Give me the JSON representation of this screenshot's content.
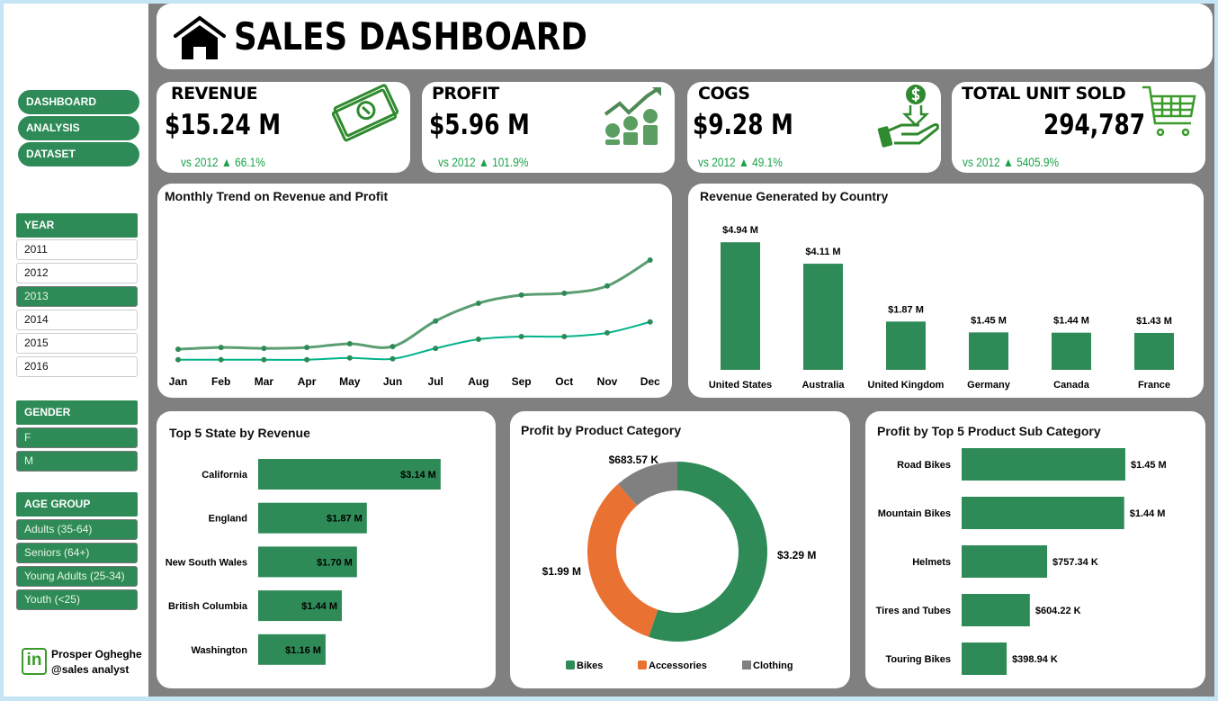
{
  "header": {
    "title": "SALES DASHBOARD"
  },
  "nav": [
    {
      "label": "DASHBOARD"
    },
    {
      "label": "ANALYSIS"
    },
    {
      "label": "DATASET"
    }
  ],
  "filters": {
    "year": {
      "label": "YEAR",
      "items": [
        "2011",
        "2012",
        "2013",
        "2014",
        "2015",
        "2016"
      ],
      "selected": "2013"
    },
    "gender": {
      "label": "GENDER",
      "items": [
        "F",
        "M"
      ]
    },
    "age_group": {
      "label": "AGE GROUP",
      "items": [
        "Adults (35-64)",
        "Seniors (64+)",
        "Young Adults (25-34)",
        "Youth (<25)"
      ]
    }
  },
  "author": {
    "name": "Prosper Ogheghe",
    "handle": "@sales analyst",
    "icon": "linkedin-icon"
  },
  "kpis": [
    {
      "title": "REVENUE",
      "value": "$15.24 M",
      "compare": "vs 2012 ▲ 66.1%",
      "icon": "money-icon"
    },
    {
      "title": "PROFIT",
      "value": "$5.96 M",
      "compare": "vs 2012 ▲ 101.9%",
      "icon": "profit-growth-icon"
    },
    {
      "title": "COGS",
      "value": "$9.28 M",
      "compare": "vs 2012 ▲ 49.1%",
      "icon": "hand-dollar-icon"
    },
    {
      "title": "TOTAL UNIT SOLD",
      "value": "294,787",
      "compare": "vs 2012 ▲ 5405.9%",
      "icon": "cart-icon"
    }
  ],
  "colors": {
    "green": "#2e8b57",
    "teal": "#00b38a",
    "orange": "#e97132",
    "gray": "#808080",
    "up": "#1aa34a"
  },
  "chart_data": [
    {
      "type": "line",
      "title": "Monthly Trend on Revenue and Profit",
      "categories": [
        "Jan",
        "Feb",
        "Mar",
        "Apr",
        "May",
        "Jun",
        "Jul",
        "Aug",
        "Sep",
        "Oct",
        "Nov",
        "Dec"
      ],
      "series": [
        {
          "values": [
            0.63,
            0.67,
            0.65,
            0.67,
            0.75,
            0.69,
            1.25,
            1.64,
            1.82,
            1.86,
            2.02,
            2.59
          ],
          "color": "#5a9e72"
        },
        {
          "values": [
            0.4,
            0.4,
            0.4,
            0.4,
            0.44,
            0.42,
            0.65,
            0.85,
            0.91,
            0.91,
            0.99,
            1.23
          ],
          "color": "#00b38a"
        }
      ],
      "grid": false
    },
    {
      "type": "bar",
      "title": "Revenue Generated by Country",
      "categories": [
        "United States",
        "Australia",
        "United Kingdom",
        "Germany",
        "Canada",
        "France"
      ],
      "values": [
        4.94,
        4.11,
        1.87,
        1.45,
        1.44,
        1.43
      ],
      "labels": [
        "$4.94 M",
        "$4.11 M",
        "$1.87 M",
        "$1.45 M",
        "$1.44 M",
        "$1.43 M"
      ]
    },
    {
      "type": "bar",
      "orientation": "horizontal",
      "title": "Top 5 State by Revenue",
      "categories": [
        "California",
        "England",
        "New South Wales",
        "British Columbia",
        "Washington"
      ],
      "values": [
        3.14,
        1.87,
        1.7,
        1.44,
        1.16
      ],
      "labels": [
        "$3.14 M",
        "$1.87 M",
        "$1.70 M",
        "$1.44 M",
        "$1.16 M"
      ]
    },
    {
      "type": "pie",
      "subtype": "donut",
      "title": "Profit by Product Category",
      "categories": [
        "Bikes",
        "Accessories",
        "Clothing"
      ],
      "values": [
        3.29,
        1.99,
        0.68357
      ],
      "labels": [
        "$3.29 M",
        "$1.99 M",
        "$683.57 K"
      ],
      "colors": [
        "#2e8b57",
        "#e97132",
        "#808080"
      ],
      "legend": "bottom"
    },
    {
      "type": "bar",
      "orientation": "horizontal",
      "title": "Profit by Top 5  Product Sub Category",
      "categories": [
        "Road Bikes",
        "Mountain Bikes",
        "Helmets",
        "Tires and Tubes",
        "Touring Bikes"
      ],
      "values": [
        1.45,
        1.44,
        0.75734,
        0.60422,
        0.39894
      ],
      "labels": [
        "$1.45 M",
        "$1.44 M",
        "$757.34 K",
        "$604.22 K",
        "$398.94 K"
      ]
    }
  ]
}
